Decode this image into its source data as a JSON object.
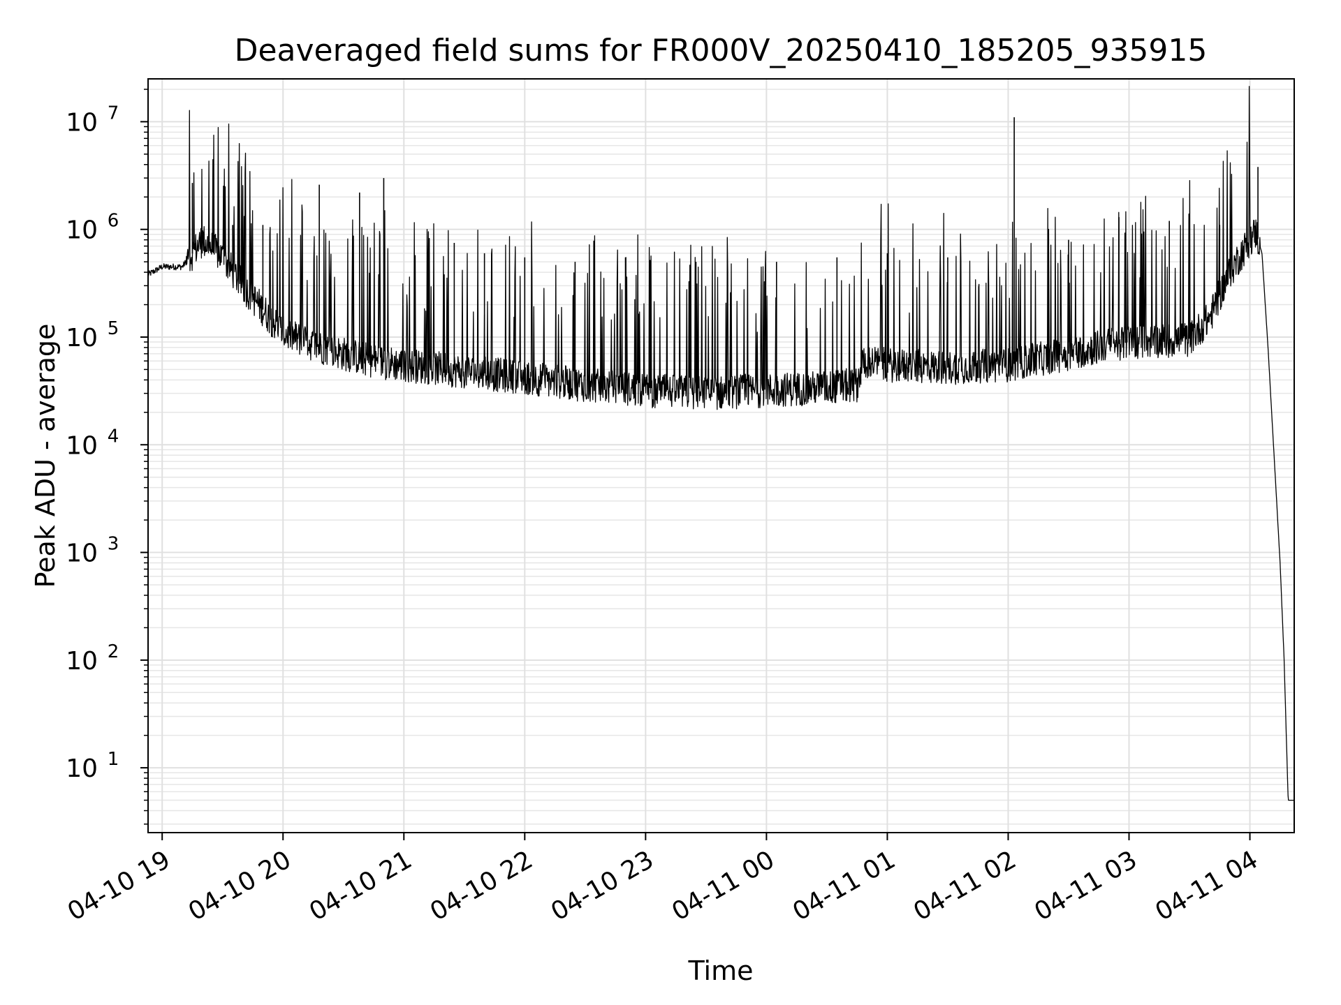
{
  "chart_data": {
    "type": "line",
    "title": "Deaveraged field sums for FR000V_20250410_185205_935915",
    "xlabel": "Time",
    "ylabel": "Peak ADU - average",
    "yscale": "log",
    "ylim": [
      2.5,
      25000000
    ],
    "xlim": [
      "2025-04-10 18:53",
      "2025-04-11 04:22"
    ],
    "grid": true,
    "xticks": [
      {
        "time": "2025-04-10 19:00",
        "label": "04-10 19"
      },
      {
        "time": "2025-04-10 20:00",
        "label": "04-10 20"
      },
      {
        "time": "2025-04-10 21:00",
        "label": "04-10 21"
      },
      {
        "time": "2025-04-10 22:00",
        "label": "04-10 22"
      },
      {
        "time": "2025-04-10 23:00",
        "label": "04-10 23"
      },
      {
        "time": "2025-04-11 00:00",
        "label": "04-11 00"
      },
      {
        "time": "2025-04-11 01:00",
        "label": "04-11 01"
      },
      {
        "time": "2025-04-11 02:00",
        "label": "04-11 02"
      },
      {
        "time": "2025-04-11 03:00",
        "label": "04-11 03"
      },
      {
        "time": "2025-04-11 04:00",
        "label": "04-11 04"
      }
    ],
    "yticks": [
      {
        "value": 10,
        "base": "10",
        "exp": "1"
      },
      {
        "value": 100,
        "base": "10",
        "exp": "2"
      },
      {
        "value": 1000,
        "base": "10",
        "exp": "3"
      },
      {
        "value": 10000,
        "base": "10",
        "exp": "4"
      },
      {
        "value": 100000,
        "base": "10",
        "exp": "5"
      },
      {
        "value": 1000000,
        "base": "10",
        "exp": "6"
      },
      {
        "value": 10000000,
        "base": "10",
        "exp": "7"
      }
    ],
    "baseline": [
      [
        "2025-04-10 18:53",
        380000
      ],
      [
        "2025-04-10 19:00",
        450000
      ],
      [
        "2025-04-10 19:10",
        450000
      ],
      [
        "2025-04-10 19:20",
        800000
      ],
      [
        "2025-04-10 19:30",
        550000
      ],
      [
        "2025-04-10 19:40",
        300000
      ],
      [
        "2025-04-10 19:50",
        180000
      ],
      [
        "2025-04-10 20:00",
        110000
      ],
      [
        "2025-04-10 20:15",
        85000
      ],
      [
        "2025-04-10 20:30",
        70000
      ],
      [
        "2025-04-10 20:45",
        60000
      ],
      [
        "2025-04-10 21:00",
        55000
      ],
      [
        "2025-04-10 21:30",
        48000
      ],
      [
        "2025-04-10 22:00",
        42000
      ],
      [
        "2025-04-10 22:30",
        36000
      ],
      [
        "2025-04-10 23:00",
        32000
      ],
      [
        "2025-04-10 23:30",
        30000
      ],
      [
        "2025-04-11 00:00",
        32000
      ],
      [
        "2025-04-11 00:30",
        34000
      ],
      [
        "2025-04-11 00:45",
        36000
      ],
      [
        "2025-04-11 00:48",
        60000
      ],
      [
        "2025-04-11 01:00",
        55000
      ],
      [
        "2025-04-11 01:30",
        52000
      ],
      [
        "2025-04-11 02:00",
        55000
      ],
      [
        "2025-04-11 02:30",
        70000
      ],
      [
        "2025-04-11 02:50",
        85000
      ],
      [
        "2025-04-11 03:00",
        90000
      ],
      [
        "2025-04-11 03:30",
        95000
      ],
      [
        "2025-04-11 03:40",
        150000
      ],
      [
        "2025-04-11 03:50",
        400000
      ],
      [
        "2025-04-11 04:00",
        800000
      ],
      [
        "2025-04-11 04:03",
        950000
      ],
      [
        "2025-04-11 04:06",
        600000
      ],
      [
        "2025-04-11 04:09",
        80000
      ],
      [
        "2025-04-11 04:12",
        8000
      ],
      [
        "2025-04-11 04:15",
        800
      ],
      [
        "2025-04-11 04:17",
        100
      ],
      [
        "2025-04-11 04:19",
        5
      ],
      [
        "2025-04-11 04:22",
        5
      ]
    ],
    "spikes": [
      [
        "2025-04-10 19:15",
        2700000
      ],
      [
        "2025-04-10 19:35",
        1100000
      ],
      [
        "2025-04-10 19:50",
        1100000
      ],
      [
        "2025-04-10 20:18",
        2600000
      ],
      [
        "2025-04-10 20:38",
        2200000
      ],
      [
        "2025-04-10 20:50",
        3000000
      ],
      [
        "2025-04-10 21:25",
        750000
      ],
      [
        "2025-04-10 21:40",
        600000
      ],
      [
        "2025-04-10 22:00",
        550000
      ],
      [
        "2025-04-10 22:25",
        500000
      ],
      [
        "2025-04-10 22:50",
        550000
      ],
      [
        "2025-04-10 23:25",
        500000
      ],
      [
        "2025-04-11 00:05",
        500000
      ],
      [
        "2025-04-11 00:35",
        550000
      ],
      [
        "2025-04-11 01:00",
        600000
      ],
      [
        "2025-04-11 01:30",
        550000
      ],
      [
        "2025-04-11 02:03",
        11000000
      ],
      [
        "2025-04-11 02:30",
        800000
      ],
      [
        "2025-04-11 02:55",
        1300000
      ],
      [
        "2025-04-11 03:20",
        1200000
      ],
      [
        "2025-04-11 03:45",
        1100000
      ],
      [
        "2025-04-11 04:04",
        3800000
      ]
    ]
  }
}
